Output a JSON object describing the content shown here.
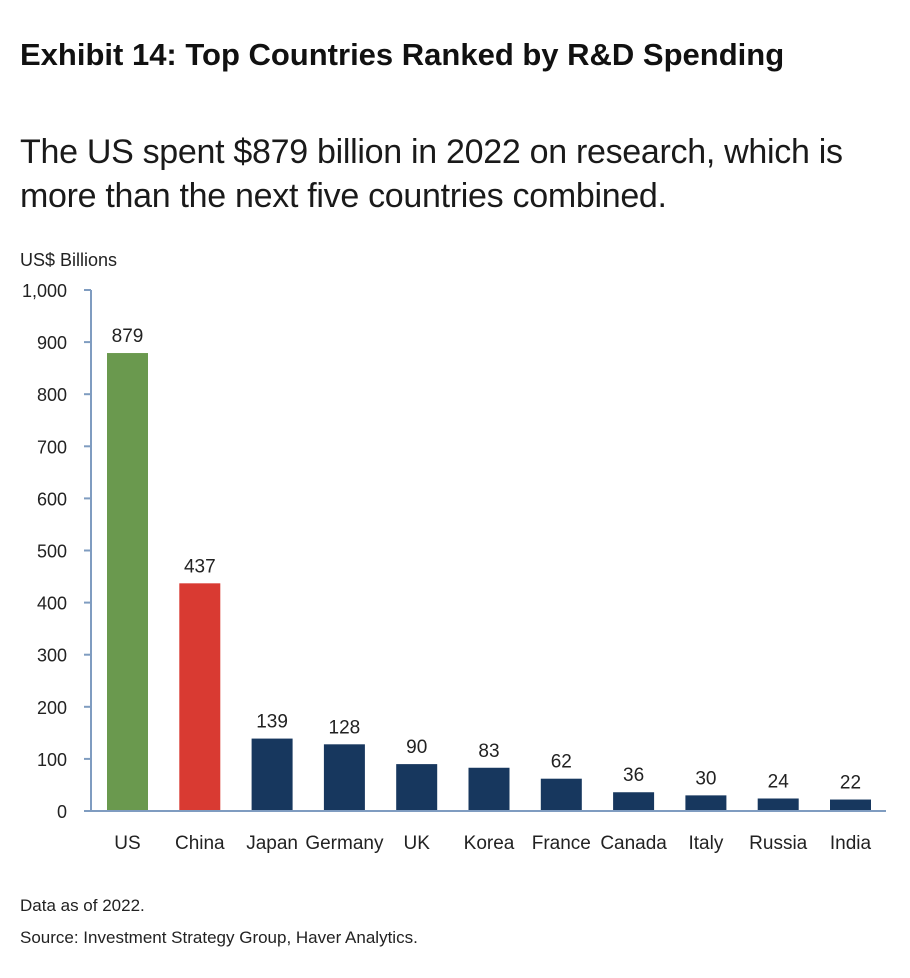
{
  "header": {
    "title": "Exhibit 14: Top Countries Ranked by R&D Spending",
    "subtitle": "The US spent $879 billion in 2022 on research, which is more than the next five countries combined."
  },
  "footer": {
    "note": "Data as of 2022.",
    "source": "Source: Investment Strategy Group, Haver Analytics."
  },
  "colors": {
    "us": "#6a994e",
    "china": "#d93a32",
    "others": "#17375e",
    "axis": "#7f9cc0"
  },
  "chart_data": {
    "type": "bar",
    "title": "Exhibit 14: Top Countries Ranked by R&D Spending",
    "ylabel": "US$ Billions",
    "xlabel": "",
    "ylim": [
      0,
      1000
    ],
    "yticks": [
      0,
      100,
      200,
      300,
      400,
      500,
      600,
      700,
      800,
      900,
      1000
    ],
    "ytick_labels": [
      "0",
      "100",
      "200",
      "300",
      "400",
      "500",
      "600",
      "700",
      "800",
      "900",
      "1,000"
    ],
    "categories": [
      "US",
      "China",
      "Japan",
      "Germany",
      "UK",
      "Korea",
      "France",
      "Canada",
      "Italy",
      "Russia",
      "India"
    ],
    "values": [
      879,
      437,
      139,
      128,
      90,
      83,
      62,
      36,
      30,
      24,
      22
    ],
    "data_labels": [
      "879",
      "437",
      "139",
      "128",
      "90",
      "83",
      "62",
      "36",
      "30",
      "24",
      "22"
    ],
    "bar_colors": [
      "#6a994e",
      "#d93a32",
      "#17375e",
      "#17375e",
      "#17375e",
      "#17375e",
      "#17375e",
      "#17375e",
      "#17375e",
      "#17375e",
      "#17375e"
    ],
    "grid": false,
    "legend": "none"
  }
}
